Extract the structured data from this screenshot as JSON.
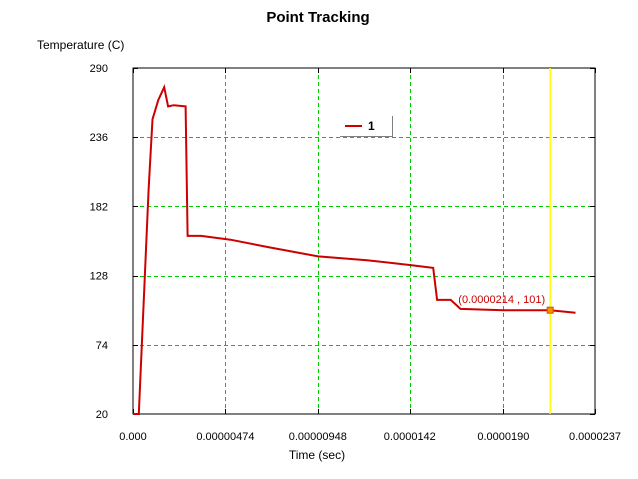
{
  "chart_data": {
    "type": "line",
    "title": "Point Tracking",
    "xlabel": "Time (sec)",
    "ylabel": "Temperature (C)",
    "xlim": [
      0,
      2.37e-05
    ],
    "ylim": [
      20,
      290
    ],
    "x_ticks": [
      0,
      4.74e-06,
      9.48e-06,
      1.42e-05,
      1.9e-05,
      2.37e-05
    ],
    "x_tick_labels": [
      "0.000",
      "0.00000474",
      "0.00000948",
      "0.0000142",
      "0.0000190",
      "0.0000237"
    ],
    "y_ticks": [
      20,
      74,
      128,
      182,
      236,
      290
    ],
    "y_tick_labels": [
      "20",
      "74",
      "128",
      "182",
      "236",
      "290"
    ],
    "grid": true,
    "legend_position": "top-center",
    "series": [
      {
        "name": "1",
        "color": "#cc0000",
        "points": [
          [
            0.0,
            20
          ],
          [
            3e-07,
            20
          ],
          [
            8e-07,
            195
          ],
          [
            1e-06,
            250
          ],
          [
            1.3e-06,
            265
          ],
          [
            1.6e-06,
            275
          ],
          [
            1.8e-06,
            260
          ],
          [
            2.1e-06,
            261
          ],
          [
            2.7e-06,
            260
          ],
          [
            2.8e-06,
            159
          ],
          [
            3.5e-06,
            159
          ],
          [
            5e-06,
            156
          ],
          [
            7e-06,
            150
          ],
          [
            9.5e-06,
            143
          ],
          [
            1.2e-05,
            140
          ],
          [
            1.43e-05,
            136
          ],
          [
            1.54e-05,
            134
          ],
          [
            1.56e-05,
            109
          ],
          [
            1.63e-05,
            109
          ],
          [
            1.68e-05,
            102
          ],
          [
            1.9e-05,
            101
          ],
          [
            2.14e-05,
            101
          ],
          [
            2.27e-05,
            99
          ]
        ]
      }
    ],
    "cursor": {
      "x": 2.14e-05,
      "y": 101,
      "label": "(0.0000214 , 101)",
      "line_color": "#ffff00",
      "marker_color": "#ff8c00"
    }
  }
}
